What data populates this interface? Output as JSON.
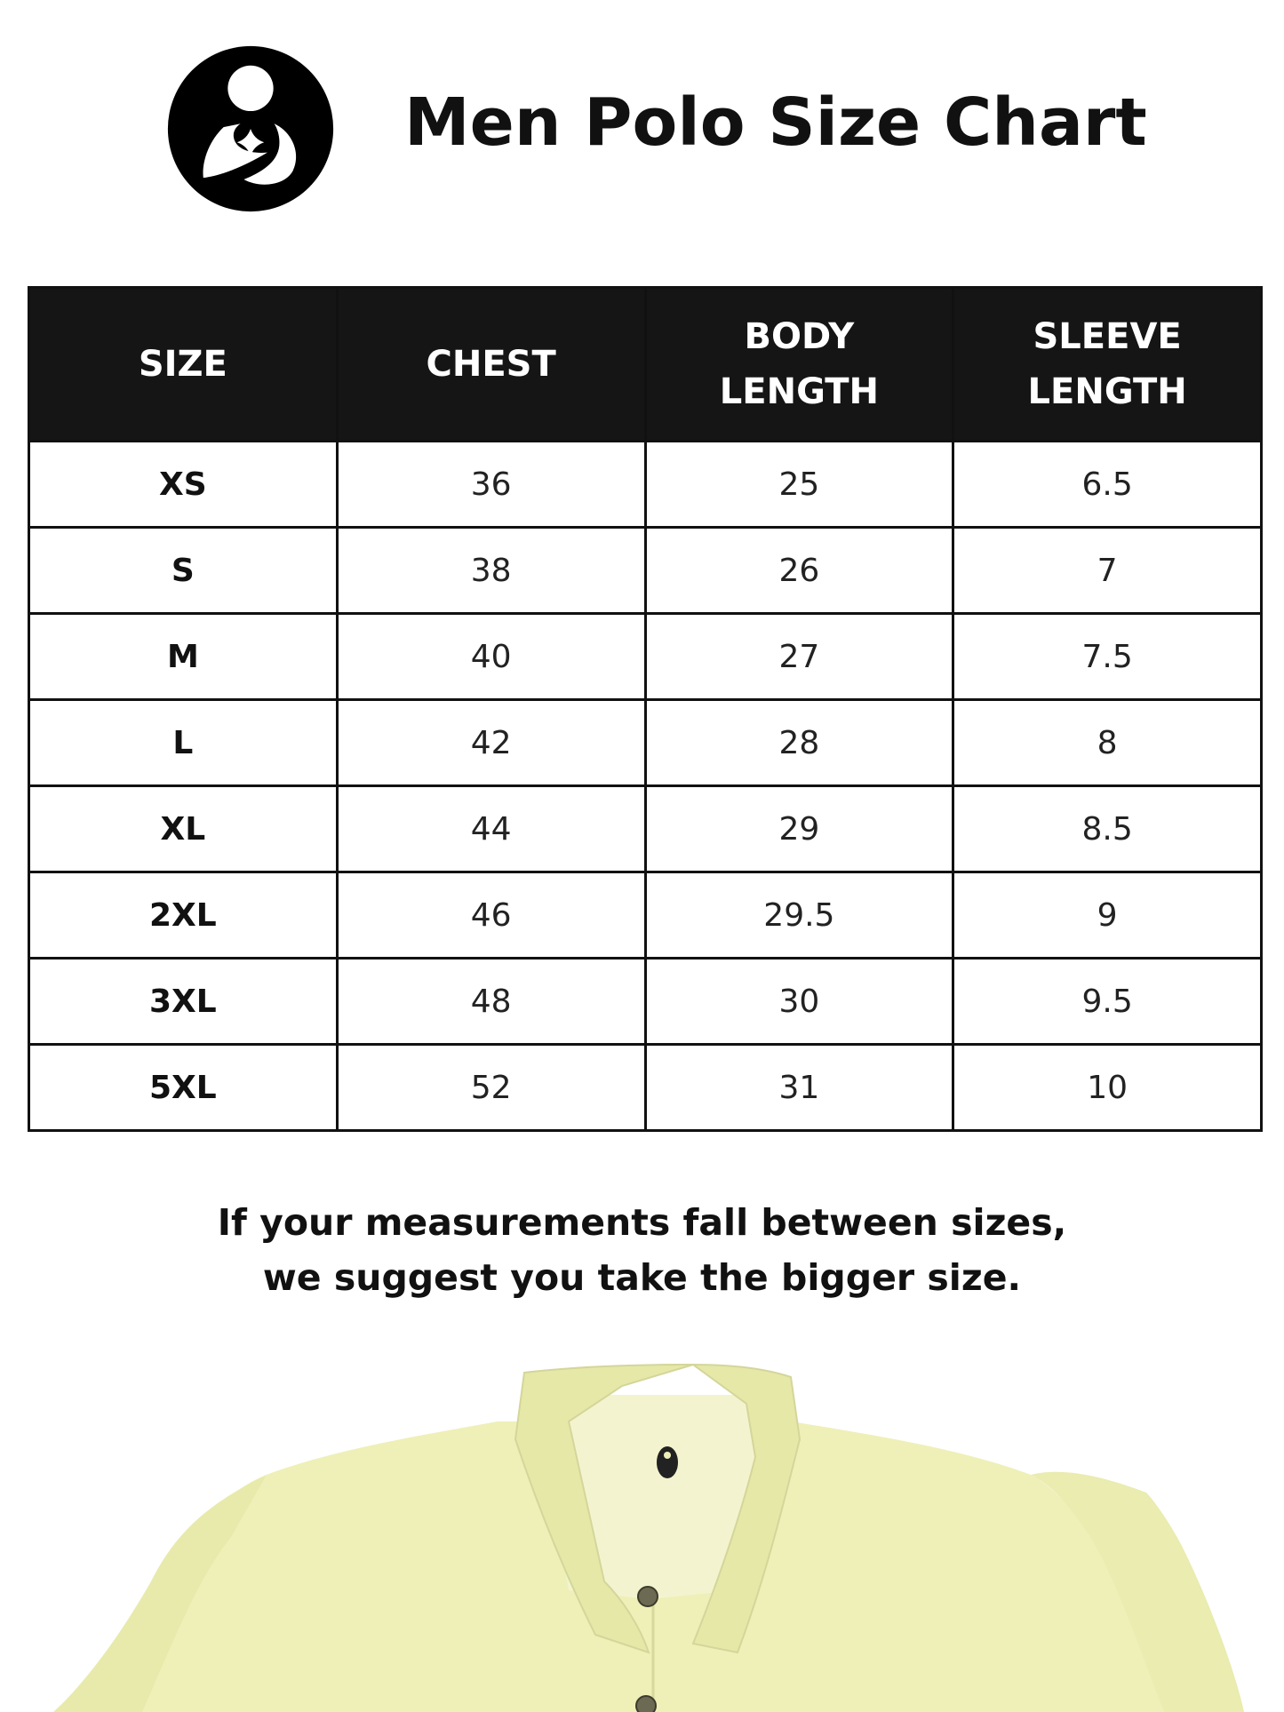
{
  "header": {
    "logo_icon": "mother-holding-child-logo",
    "title": "Men Polo Size Chart"
  },
  "table": {
    "columns": [
      [
        "SIZE"
      ],
      [
        "CHEST"
      ],
      [
        "BODY",
        "LENGTH"
      ],
      [
        "SLEEVE",
        "LENGTH"
      ]
    ],
    "rows": [
      [
        "XS",
        "36",
        "25",
        "6.5"
      ],
      [
        "S",
        "38",
        "26",
        "7"
      ],
      [
        "M",
        "40",
        "27",
        "7.5"
      ],
      [
        "L",
        "42",
        "28",
        "8"
      ],
      [
        "XL",
        "44",
        "29",
        "8.5"
      ],
      [
        "2XL",
        "46",
        "29.5",
        "9"
      ],
      [
        "3XL",
        "48",
        "30",
        "9.5"
      ],
      [
        "5XL",
        "52",
        "31",
        "10"
      ]
    ]
  },
  "note": {
    "line1": "If your measurements fall between sizes,",
    "line2": "we suggest you take the bigger size."
  },
  "colors": {
    "header_bg": "#151515",
    "shirt": "#eef0b8"
  }
}
